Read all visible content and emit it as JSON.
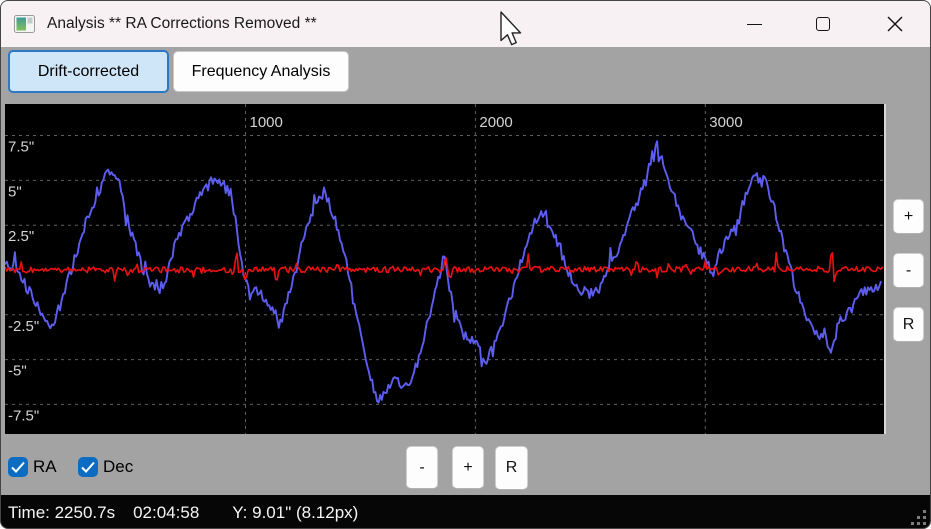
{
  "window": {
    "title": "Analysis ** RA Corrections Removed **"
  },
  "titlebar_icons": {
    "app_icon": "chart-app-icon",
    "controls": [
      "minimize",
      "maximize",
      "close"
    ]
  },
  "tabs": [
    {
      "label": "Drift-corrected",
      "active": true
    },
    {
      "label": "Frequency Analysis",
      "active": false
    }
  ],
  "side_controls": [
    {
      "label": "+"
    },
    {
      "label": "-"
    },
    {
      "label": "R"
    }
  ],
  "bottom_controls": [
    {
      "label": "-"
    },
    {
      "label": "+"
    },
    {
      "label": "R"
    }
  ],
  "checkboxes": [
    {
      "label": "RA",
      "checked": true
    },
    {
      "label": "Dec",
      "checked": true
    }
  ],
  "statusbar": {
    "time": "Time: 2250.7s",
    "clock": "02:04:58",
    "y_readout": "Y: 9.01\" (8.12px)"
  },
  "colors": {
    "ra_line": "#5d5df2",
    "dec_line": "#ee1111",
    "grid": "#5f5f5f",
    "axis_text": "#d4d4d4",
    "chart_bg": "#000000",
    "body_bg": "#a3a3a3",
    "selected_tab_bg": "#cfe6f8",
    "selected_tab_border": "#2c78c4",
    "checkbox_blue": "#0b6cc1",
    "statusbar_bg": "#060606"
  },
  "chart_data": {
    "type": "line",
    "title": "",
    "xlabel": "",
    "ylabel": "",
    "xlim": [
      -46,
      3777
    ],
    "ylim": [
      -9.15,
      9.26
    ],
    "x_ticks": [
      1000,
      2000,
      3000
    ],
    "x_tick_labels": [
      "1000",
      "2000",
      "3000"
    ],
    "y_ticks": [
      7.5,
      5,
      2.5,
      -2.5,
      -5,
      -7.5
    ],
    "y_tick_labels": [
      "7.5\"",
      "5\"",
      "2.5\"",
      "-2.5\"",
      "-5\"",
      "-7.5\""
    ],
    "grid": "dashed",
    "legend": [
      {
        "name": "RA",
        "color": "#5d5df2"
      },
      {
        "name": "Dec",
        "color": "#ee1111"
      }
    ],
    "series": [
      {
        "name": "RA",
        "color": "#5d5df2",
        "stroke_width": 1.9,
        "noise": 0.3,
        "keypoints": [
          [
            -45,
            0.3
          ],
          [
            0,
            0.1
          ],
          [
            60,
            -1.2
          ],
          [
            135,
            -3.1
          ],
          [
            150,
            -3.4
          ],
          [
            200,
            -1.8
          ],
          [
            260,
            0.8
          ],
          [
            310,
            2.8
          ],
          [
            360,
            4.3
          ],
          [
            400,
            5.7
          ],
          [
            430,
            5.0
          ],
          [
            445,
            5.2
          ],
          [
            490,
            2.6
          ],
          [
            545,
            0.3
          ],
          [
            610,
            -1.3
          ],
          [
            650,
            -0.6
          ],
          [
            700,
            1.6
          ],
          [
            780,
            3.7
          ],
          [
            855,
            5.0
          ],
          [
            905,
            4.7
          ],
          [
            940,
            4.2
          ],
          [
            970,
            1.5
          ],
          [
            995,
            -0.3
          ],
          [
            1020,
            -1.5
          ],
          [
            1050,
            -1.0
          ],
          [
            1085,
            -1.8
          ],
          [
            1120,
            -2.4
          ],
          [
            1145,
            -3.2
          ],
          [
            1175,
            -2.0
          ],
          [
            1215,
            -0.2
          ],
          [
            1260,
            2.2
          ],
          [
            1310,
            3.9
          ],
          [
            1345,
            4.4
          ],
          [
            1380,
            3.2
          ],
          [
            1445,
            0.1
          ],
          [
            1490,
            -2.7
          ],
          [
            1530,
            -5.3
          ],
          [
            1560,
            -6.6
          ],
          [
            1575,
            -7.3
          ],
          [
            1595,
            -6.8
          ],
          [
            1630,
            -6.4
          ],
          [
            1660,
            -6.2
          ],
          [
            1695,
            -6.6
          ],
          [
            1720,
            -6.3
          ],
          [
            1760,
            -4.6
          ],
          [
            1810,
            -2.0
          ],
          [
            1845,
            -0.3
          ],
          [
            1865,
            0.8
          ],
          [
            1900,
            -1.9
          ],
          [
            1945,
            -3.5
          ],
          [
            2005,
            -4.2
          ],
          [
            2030,
            -5.2
          ],
          [
            2060,
            -4.8
          ],
          [
            2105,
            -3.4
          ],
          [
            2160,
            -1.2
          ],
          [
            2220,
            1.4
          ],
          [
            2270,
            3.0
          ],
          [
            2300,
            3.3
          ],
          [
            2330,
            2.5
          ],
          [
            2395,
            0.2
          ],
          [
            2440,
            -1.0
          ],
          [
            2510,
            -1.3
          ],
          [
            2545,
            -0.9
          ],
          [
            2590,
            0.4
          ],
          [
            2630,
            1.4
          ],
          [
            2680,
            3.2
          ],
          [
            2740,
            5.1
          ],
          [
            2775,
            6.2
          ],
          [
            2790,
            7.1
          ],
          [
            2800,
            6.0
          ],
          [
            2815,
            6.1
          ],
          [
            2850,
            4.6
          ],
          [
            2890,
            3.2
          ],
          [
            2935,
            2.1
          ],
          [
            2975,
            1.1
          ],
          [
            3010,
            0.4
          ],
          [
            3030,
            -0.3
          ],
          [
            3060,
            0.9
          ],
          [
            3105,
            1.9
          ],
          [
            3150,
            3.3
          ],
          [
            3195,
            4.7
          ],
          [
            3215,
            5.4
          ],
          [
            3235,
            4.9
          ],
          [
            3265,
            5.0
          ],
          [
            3305,
            3.2
          ],
          [
            3335,
            1.6
          ],
          [
            3365,
            0.2
          ],
          [
            3400,
            -1.3
          ],
          [
            3445,
            -2.7
          ],
          [
            3470,
            -3.3
          ],
          [
            3495,
            -3.8
          ],
          [
            3520,
            -3.4
          ],
          [
            3540,
            -4.5
          ],
          [
            3555,
            -4.1
          ],
          [
            3580,
            -3.0
          ],
          [
            3610,
            -2.5
          ],
          [
            3640,
            -2.2
          ],
          [
            3665,
            -1.4
          ],
          [
            3690,
            -1.2
          ],
          [
            3720,
            -1.0
          ],
          [
            3750,
            -0.9
          ],
          [
            3768,
            -0.8
          ]
        ]
      },
      {
        "name": "Dec",
        "color": "#ee1111",
        "stroke_width": 1.6,
        "noise": 0.16,
        "keypoints": [
          [
            -45,
            0.0
          ],
          [
            3776,
            0.05
          ]
        ],
        "spikes": [
          [
            430,
            -0.6
          ],
          [
            960,
            1.2
          ],
          [
            1000,
            -0.6
          ],
          [
            1135,
            -0.7
          ],
          [
            1400,
            0.6
          ],
          [
            1760,
            -0.5
          ],
          [
            1870,
            0.9
          ],
          [
            1890,
            -0.6
          ],
          [
            2230,
            0.7
          ],
          [
            2700,
            0.6
          ],
          [
            3000,
            0.5
          ],
          [
            3060,
            -0.5
          ],
          [
            3310,
            0.8
          ],
          [
            3550,
            1.35
          ],
          [
            3562,
            -1.0
          ]
        ]
      }
    ]
  }
}
